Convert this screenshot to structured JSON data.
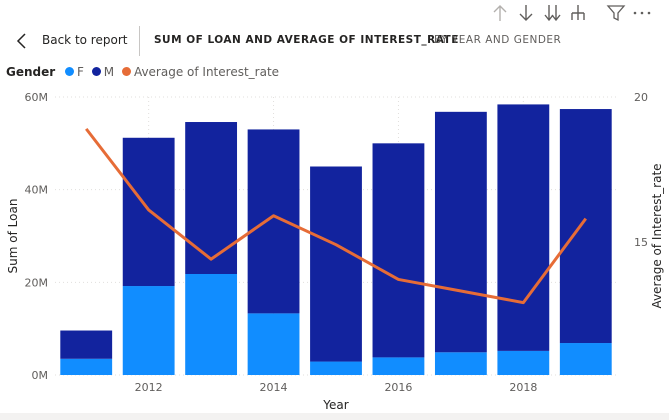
{
  "header": {
    "back_label": "Back to report",
    "title": "SUM OF LOAN AND AVERAGE OF INTEREST_RATE",
    "subtitle": "BY YEAR AND GENDER"
  },
  "toolbar": {
    "icons": [
      "arrow-up-icon",
      "arrow-down-icon",
      "double-arrow-down-icon",
      "expand-hierarchy-icon",
      "filter-icon",
      "more-options-icon"
    ]
  },
  "legend": {
    "title": "Gender",
    "items": [
      {
        "label": "F",
        "color": "#118dff"
      },
      {
        "label": "M",
        "color": "#12239e"
      },
      {
        "label": "Average of Interest_rate",
        "color": "#e66c37"
      }
    ]
  },
  "chart_data": {
    "type": "bar",
    "stacked": true,
    "x": [
      2011,
      2012,
      2013,
      2014,
      2015,
      2016,
      2017,
      2018,
      2019
    ],
    "x_ticks": [
      "2012",
      "2014",
      "2016",
      "2018"
    ],
    "xlabel": "Year",
    "ylabel": "Sum of Loan",
    "y2label": "Average of Interest_rate",
    "ylim": [
      0,
      60000000
    ],
    "y_ticks": [
      "0M",
      "20M",
      "40M",
      "60M"
    ],
    "y2lim": [
      10.4,
      20
    ],
    "y2_ticks": [
      "15",
      "20"
    ],
    "series": [
      {
        "name": "F",
        "values": [
          3500000,
          19200000,
          21800000,
          13300000,
          2900000,
          3800000,
          4900000,
          5200000,
          6900000
        ]
      },
      {
        "name": "M",
        "values": [
          6100000,
          32000000,
          32800000,
          39700000,
          42100000,
          46200000,
          51900000,
          53200000,
          50500000
        ]
      }
    ],
    "line": {
      "name": "Average of Interest_rate",
      "values": [
        18.9,
        16.1,
        14.4,
        15.9,
        14.9,
        13.7,
        13.3,
        12.9,
        15.8
      ]
    },
    "colors": {
      "F": "#118dff",
      "M": "#12239e",
      "line": "#e66c37"
    },
    "grid": true,
    "legend_position": "top-left"
  }
}
